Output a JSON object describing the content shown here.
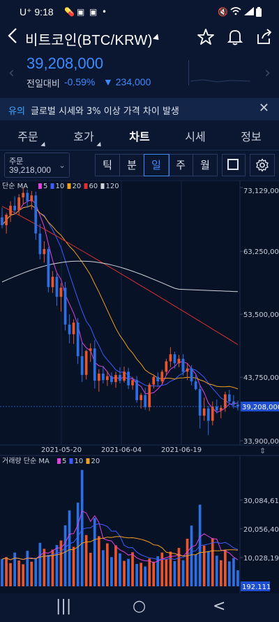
{
  "status": {
    "carrier": "U⁺",
    "time": "9:18",
    "battery": "▮"
  },
  "header": {
    "title": "비트코인(BTC/KRW)"
  },
  "ticker": {
    "price": "39,208,000",
    "change_label": "전일대비",
    "change_pct": "-0.59%",
    "change_value": "▼ 234,000"
  },
  "notice": {
    "tag": "유의",
    "message": "글로벌 시세와 3% 이상 가격 차이 발생"
  },
  "tabs": [
    {
      "label": "주문"
    },
    {
      "label": "호가"
    },
    {
      "label": "차트"
    },
    {
      "label": "시세"
    },
    {
      "label": "정보"
    }
  ],
  "order_select": {
    "label": "주문",
    "value": "39,218,000"
  },
  "periods": [
    "틱",
    "분",
    "일",
    "주",
    "월"
  ],
  "chart_data": [
    {
      "type": "candlestick",
      "legend": {
        "prefix": "단순",
        "name": "MA",
        "items": [
          {
            "label": "5",
            "color": "#e040e0"
          },
          {
            "label": "10",
            "color": "#3d5cff"
          },
          {
            "label": "20",
            "color": "#f0a020"
          },
          {
            "label": "60",
            "color": "#e03030"
          },
          {
            "label": "120",
            "color": "#cfd3da"
          }
        ]
      },
      "y_ticks": [
        "73,129,000",
        "63,250,000",
        "53,500,000",
        "43,750,000",
        "33,900,000"
      ],
      "ylim": [
        33900000,
        73129000
      ],
      "current_price_label": "39,208,000",
      "x_ticks": [
        "2021-05-20",
        "2021-06-04",
        "2021-06-19"
      ],
      "up_color": "#e8562e",
      "down_color": "#2d6fe0",
      "candles": [
        [
          68500000,
          70000000,
          66800000,
          67300000
        ],
        [
          67300000,
          69200000,
          66000000,
          68900000
        ],
        [
          68900000,
          71000000,
          67800000,
          70300000
        ],
        [
          70300000,
          71800000,
          69000000,
          69600000
        ],
        [
          69600000,
          72100000,
          68800000,
          71600000
        ],
        [
          71600000,
          73129000,
          70500000,
          72300000
        ],
        [
          72300000,
          72800000,
          70000000,
          71000000
        ],
        [
          71000000,
          72600000,
          69700000,
          71900000
        ],
        [
          71900000,
          72500000,
          65000000,
          66000000
        ],
        [
          66000000,
          67500000,
          62000000,
          62800000
        ],
        [
          62800000,
          64800000,
          61500000,
          63600000
        ],
        [
          63600000,
          63900000,
          56900000,
          57700000
        ],
        [
          57700000,
          60200000,
          56800000,
          59300000
        ],
        [
          59300000,
          59800000,
          54800000,
          56200000
        ],
        [
          56200000,
          58300000,
          53900000,
          57600000
        ],
        [
          57600000,
          58500000,
          51000000,
          51900000
        ],
        [
          51900000,
          53500000,
          49000000,
          50400000
        ],
        [
          50400000,
          52700000,
          48900000,
          52200000
        ],
        [
          52200000,
          52900000,
          45800000,
          47000000
        ],
        [
          47000000,
          49300000,
          43000000,
          44100000
        ],
        [
          44100000,
          48000000,
          43400000,
          47800000
        ],
        [
          47800000,
          49000000,
          46100000,
          48200000
        ],
        [
          48200000,
          49500000,
          42000000,
          43200000
        ],
        [
          43200000,
          45000000,
          41500000,
          44300000
        ],
        [
          44300000,
          45500000,
          42800000,
          43300000
        ],
        [
          43300000,
          44700000,
          42400000,
          43900000
        ],
        [
          43900000,
          44500000,
          42600000,
          43000000
        ],
        [
          43000000,
          44600000,
          42100000,
          44100000
        ],
        [
          44100000,
          45300000,
          42800000,
          43200000
        ],
        [
          43200000,
          45400000,
          42900000,
          44600000
        ],
        [
          44600000,
          45200000,
          41900000,
          42500000
        ],
        [
          42500000,
          43800000,
          41800000,
          43300000
        ],
        [
          43300000,
          43900000,
          39800000,
          40200000
        ],
        [
          40200000,
          41300000,
          38900000,
          41000000
        ],
        [
          41000000,
          42100000,
          38700000,
          39100000
        ],
        [
          39100000,
          42900000,
          38500000,
          42600000
        ],
        [
          42600000,
          44200000,
          42000000,
          43800000
        ],
        [
          43800000,
          44500000,
          42400000,
          43100000
        ],
        [
          43100000,
          44900000,
          42700000,
          44600000
        ],
        [
          44600000,
          46600000,
          44100000,
          46200000
        ],
        [
          46200000,
          48400000,
          45300000,
          47300000
        ],
        [
          47300000,
          47700000,
          45100000,
          45900000
        ],
        [
          45900000,
          47200000,
          45300000,
          46600000
        ],
        [
          46600000,
          47300000,
          44000000,
          44600000
        ],
        [
          44600000,
          45900000,
          43300000,
          45100000
        ],
        [
          45100000,
          45600000,
          42500000,
          43100000
        ],
        [
          43100000,
          44100000,
          41700000,
          41900000
        ],
        [
          41900000,
          42600000,
          35800000,
          37800000
        ],
        [
          37800000,
          40600000,
          37000000,
          38900000
        ],
        [
          38900000,
          39300000,
          34800000,
          37000000
        ],
        [
          37000000,
          40000000,
          36300000,
          39200000
        ],
        [
          39200000,
          40300000,
          38100000,
          38600000
        ],
        [
          38600000,
          39400000,
          37400000,
          39000000
        ],
        [
          39000000,
          41500000,
          38400000,
          41100000
        ],
        [
          41100000,
          41800000,
          39600000,
          40000000
        ],
        [
          40000000,
          41000000,
          38900000,
          39500000
        ],
        [
          39500000,
          40100000,
          38600000,
          39208000
        ]
      ]
    },
    {
      "type": "bar",
      "legend": {
        "prefix": "거래량",
        "mode": "단순",
        "name": "MA",
        "items": [
          {
            "label": "5",
            "color": "#e040e0"
          },
          {
            "label": "10",
            "color": "#3d5cff"
          },
          {
            "label": "20",
            "color": "#f0a020"
          }
        ]
      },
      "y_ticks": [
        "30,084,611",
        "20,056,404",
        "10,028,197"
      ],
      "current_label": "192.111",
      "values": [
        9.5,
        10.2,
        8.1,
        11.8,
        9.0,
        7.7,
        12.4,
        8.6,
        9.9,
        15.2,
        13.1,
        11.0,
        12.8,
        14.4,
        16.0,
        21.3,
        26.5,
        13.8,
        29.2,
        40.6,
        17.9,
        11.7,
        23.8,
        17.5,
        12.6,
        15.0,
        10.2,
        14.3,
        11.5,
        8.9,
        9.6,
        11.9,
        7.8,
        8.2,
        6.9,
        9.7,
        8.6,
        10.5,
        11.8,
        9.4,
        12.1,
        8.8,
        13.4,
        9.1,
        16.6,
        21.2,
        11.1,
        28.5,
        14.2,
        12.3,
        16.8,
        10.7,
        9.1,
        12.8,
        8.7,
        9.9,
        5.6
      ]
    }
  ],
  "navbar": {
    "recents": "|||",
    "home": "○",
    "back": "<"
  }
}
